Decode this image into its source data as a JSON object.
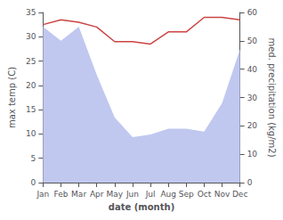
{
  "chart_data": {
    "type": "line",
    "xlabel": "date (month)",
    "ylabel": "max temp (C)",
    "y2label": "med. precipitation (kg/m2)",
    "categories": [
      "Jan",
      "Feb",
      "Mar",
      "Apr",
      "May",
      "Jun",
      "Jul",
      "Aug",
      "Sep",
      "Oct",
      "Nov",
      "Dec"
    ],
    "series": [
      {
        "type": "area",
        "axis": "y2",
        "color": "#c0c8f0",
        "values": [
          55,
          50,
          55,
          38,
          23,
          16,
          17,
          19,
          19,
          18,
          28,
          47
        ]
      },
      {
        "type": "line",
        "color": "#cc4444",
        "values": [
          32.5,
          33.5,
          33.0,
          32.0,
          29.0,
          29.0,
          28.5,
          31.0,
          31.0,
          34.0,
          34.0,
          33.5
        ]
      }
    ],
    "ylim": [
      0,
      35
    ],
    "yticks": [
      0,
      5,
      10,
      15,
      20,
      25,
      30,
      35
    ],
    "y2lim": [
      0,
      60
    ],
    "y2ticks": [
      0,
      10,
      20,
      30,
      40,
      50,
      60
    ],
    "grid": false
  }
}
